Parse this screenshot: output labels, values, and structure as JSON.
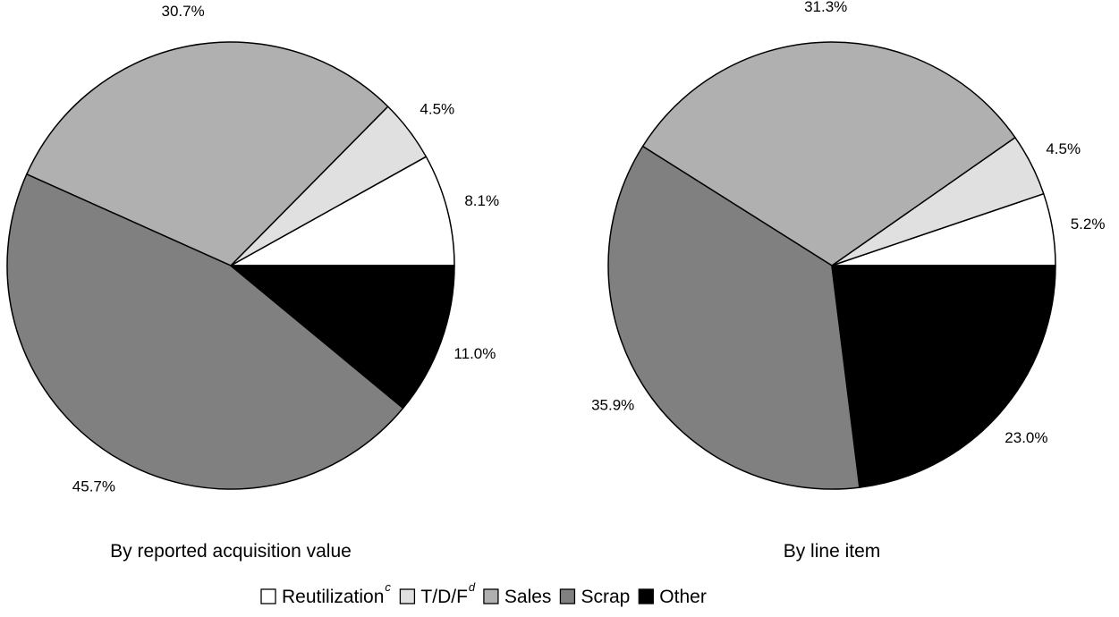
{
  "chart_data": [
    {
      "type": "pie",
      "title": "By reported acquisition value",
      "slices": [
        {
          "label": "Reutilization",
          "value": 8.1,
          "value_label": "8.1%",
          "color": "#ffffff"
        },
        {
          "label": "T/D/F",
          "value": 4.5,
          "value_label": "4.5%",
          "color": "#e0e0e0"
        },
        {
          "label": "Sales",
          "value": 30.7,
          "value_label": "30.7%",
          "color": "#b0b0b0"
        },
        {
          "label": "Scrap",
          "value": 45.7,
          "value_label": "45.7%",
          "color": "#808080"
        },
        {
          "label": "Other",
          "value": 11.0,
          "value_label": "11.0%",
          "color": "#000000"
        }
      ]
    },
    {
      "type": "pie",
      "title": "By line item",
      "slices": [
        {
          "label": "Reutilization",
          "value": 5.2,
          "value_label": "5.2%",
          "color": "#ffffff"
        },
        {
          "label": "T/D/F",
          "value": 4.5,
          "value_label": "4.5%",
          "color": "#e0e0e0"
        },
        {
          "label": "Sales",
          "value": 31.3,
          "value_label": "31.3%",
          "color": "#b0b0b0"
        },
        {
          "label": "Scrap",
          "value": 35.9,
          "value_label": "35.9%",
          "color": "#808080"
        },
        {
          "label": "Other",
          "value": 23.0,
          "value_label": "23.0%",
          "color": "#000000"
        }
      ]
    }
  ],
  "legend": [
    {
      "label": "Reutilization",
      "superscript": "c",
      "color": "#ffffff"
    },
    {
      "label": "T/D/F",
      "superscript": "d",
      "color": "#e0e0e0"
    },
    {
      "label": "Sales",
      "superscript": "",
      "color": "#b0b0b0"
    },
    {
      "label": "Scrap",
      "superscript": "",
      "color": "#808080"
    },
    {
      "label": "Other",
      "superscript": "",
      "color": "#000000"
    }
  ]
}
